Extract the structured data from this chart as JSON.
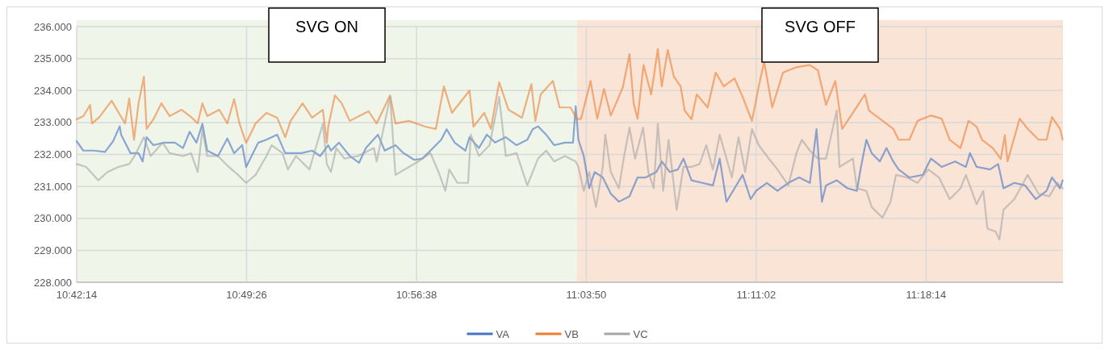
{
  "chart_data": {
    "type": "line",
    "xlim": [
      10.7039,
      11.4006
    ],
    "ylim": [
      228,
      236
    ],
    "xticks": [
      {
        "value": 10.7039,
        "label": "10:42:14"
      },
      {
        "value": 10.8239,
        "label": "10:49:26"
      },
      {
        "value": 10.9439,
        "label": "10:56:38"
      },
      {
        "value": 11.0639,
        "label": "11:03:50"
      },
      {
        "value": 11.1839,
        "label": "11:11:02"
      },
      {
        "value": 11.3039,
        "label": "11:18:14"
      }
    ],
    "yticks": [
      {
        "value": 228,
        "label": "228.000"
      },
      {
        "value": 229,
        "label": "229.000"
      },
      {
        "value": 230,
        "label": "230.000"
      },
      {
        "value": 231,
        "label": "231.000"
      },
      {
        "value": 232,
        "label": "232.000"
      },
      {
        "value": 233,
        "label": "233.000"
      },
      {
        "value": 234,
        "label": "234.000"
      },
      {
        "value": 235,
        "label": "235.000"
      },
      {
        "value": 236,
        "label": "236.000"
      }
    ],
    "grid": true,
    "legend": "bottom",
    "line_style": "solid",
    "bands": [
      {
        "axis": "x",
        "from": 10.7039,
        "to": 11.0574,
        "label": "SVG ON",
        "color": "#eff6e9"
      },
      {
        "axis": "x",
        "from": 11.0574,
        "to": 11.4006,
        "label": "SVG OFF",
        "color": "#fae4d6"
      }
    ],
    "series": [
      {
        "name": "VA",
        "color": "#4472c4",
        "x": [
          10.7039,
          10.7086,
          10.7163,
          10.7239,
          10.7296,
          10.7343,
          10.7353,
          10.7419,
          10.7476,
          10.7505,
          10.7533,
          10.7581,
          10.7656,
          10.7733,
          10.779,
          10.7837,
          10.7885,
          10.7927,
          10.7961,
          10.8037,
          10.8103,
          10.8151,
          10.8208,
          10.8236,
          10.8322,
          10.8379,
          10.8455,
          10.8512,
          10.8626,
          10.8702,
          10.8759,
          10.8816,
          10.8835,
          10.8892,
          10.8968,
          10.9034,
          10.9082,
          10.9167,
          10.9215,
          10.9291,
          10.9348,
          10.9424,
          10.9481,
          10.9538,
          10.9614,
          10.9652,
          10.9709,
          10.9785,
          10.9814,
          10.988,
          10.9937,
          10.9994,
          11.007,
          11.0146,
          11.0222,
          11.026,
          11.0298,
          11.0355,
          11.0412,
          11.0488,
          11.0545,
          11.0564,
          11.0583,
          11.0621,
          11.0659,
          11.0698,
          11.0755,
          11.0812,
          11.0869,
          11.0944,
          11.1001,
          11.1058,
          11.1134,
          11.1172,
          11.1229,
          11.1286,
          11.1325,
          11.1382,
          11.1458,
          11.1533,
          11.1581,
          11.1629,
          11.1686,
          11.1743,
          11.18,
          11.1838,
          11.1914,
          11.1989,
          11.2066,
          11.2142,
          11.2218,
          11.2265,
          11.2303,
          11.2332,
          11.2408,
          11.2484,
          11.255,
          11.2579,
          11.2617,
          11.2655,
          11.2712,
          11.2759,
          11.2807,
          11.2845,
          11.2921,
          11.3016,
          11.3073,
          11.3149,
          11.3244,
          11.332,
          11.3349,
          11.3396,
          11.3491,
          11.3548,
          11.3586,
          11.3662,
          11.3738,
          11.3814,
          11.389,
          11.3928,
          11.3985,
          11.4004
        ],
        "values": [
          232.41,
          232.12,
          232.12,
          232.08,
          232.41,
          232.88,
          232.62,
          232.04,
          232.04,
          231.78,
          232.54,
          232.29,
          232.37,
          232.37,
          232.2,
          232.71,
          232.37,
          232.96,
          232.12,
          231.95,
          232.5,
          232.04,
          232.29,
          231.61,
          232.37,
          232.46,
          232.62,
          232.04,
          232.04,
          232.12,
          231.95,
          232.29,
          232.12,
          232.37,
          231.95,
          231.74,
          232.2,
          232.62,
          232.12,
          232.29,
          232.04,
          231.83,
          231.87,
          232.12,
          232.46,
          232.79,
          232.37,
          232.12,
          232.54,
          232.2,
          232.62,
          232.37,
          232.54,
          232.29,
          232.46,
          232.79,
          232.88,
          232.62,
          232.29,
          232.37,
          232.37,
          233.51,
          232.46,
          231.95,
          230.94,
          231.45,
          231.28,
          230.77,
          230.52,
          230.69,
          231.28,
          231.28,
          231.45,
          231.78,
          231.45,
          231.53,
          231.87,
          231.19,
          231.11,
          231.03,
          231.87,
          230.52,
          230.94,
          231.36,
          230.6,
          230.86,
          231.11,
          230.86,
          231.11,
          231.28,
          231.11,
          232.79,
          230.52,
          231.03,
          231.19,
          230.94,
          230.86,
          231.61,
          232.46,
          232.04,
          231.78,
          232.2,
          231.78,
          231.53,
          231.28,
          231.36,
          231.87,
          231.61,
          231.78,
          231.61,
          232.04,
          231.61,
          231.53,
          231.7,
          230.94,
          231.11,
          231.03,
          230.6,
          230.86,
          231.28,
          230.94,
          231.19
        ]
      },
      {
        "name": "VB",
        "color": "#ed7d31",
        "x": [
          10.7039,
          10.7086,
          10.7134,
          10.7147,
          10.72,
          10.7286,
          10.7343,
          10.7381,
          10.741,
          10.7444,
          10.7476,
          10.7514,
          10.7533,
          10.7581,
          10.7638,
          10.7695,
          10.778,
          10.7847,
          10.7894,
          10.7927,
          10.7961,
          10.8046,
          10.8103,
          10.8151,
          10.8189,
          10.8236,
          10.8303,
          10.8379,
          10.8455,
          10.8512,
          10.855,
          10.8635,
          10.8702,
          10.8778,
          10.8806,
          10.8816,
          10.8863,
          10.8911,
          10.8968,
          10.9101,
          10.9158,
          10.9253,
          10.9291,
          10.9386,
          10.95,
          10.9576,
          10.9633,
          10.969,
          10.9814,
          10.9842,
          10.9918,
          10.9965,
          11.0023,
          11.0089,
          11.0184,
          11.0251,
          11.0279,
          11.0317,
          11.0403,
          11.045,
          11.0527,
          11.0574,
          11.0602,
          11.0669,
          11.0716,
          11.0764,
          11.0812,
          11.0897,
          11.0944,
          11.0973,
          11.1001,
          11.1043,
          11.1097,
          11.1144,
          11.1172,
          11.1214,
          11.1258,
          11.1305,
          11.1334,
          11.1382,
          11.1419,
          11.1496,
          11.1553,
          11.161,
          11.1686,
          11.1743,
          11.1809,
          11.1857,
          11.1895,
          11.1952,
          11.2028,
          11.2123,
          11.2218,
          11.2275,
          11.2332,
          11.2398,
          11.2446,
          11.2522,
          11.2607,
          11.2636,
          11.2712,
          11.2807,
          11.2845,
          11.2921,
          11.2978,
          11.3073,
          11.3149,
          11.3206,
          11.3282,
          11.3339,
          11.3396,
          11.3434,
          11.351,
          11.3567,
          11.3595,
          11.3614,
          11.37,
          11.3757,
          11.3833,
          11.389,
          11.3928,
          11.3985,
          11.4004
        ],
        "values": [
          233.1,
          233.2,
          233.55,
          232.97,
          233.17,
          233.68,
          233.25,
          232.97,
          233.75,
          232.46,
          233.6,
          234.43,
          232.8,
          233.1,
          233.6,
          233.2,
          233.4,
          233.17,
          232.97,
          233.6,
          233.2,
          233.4,
          232.97,
          233.73,
          232.97,
          232.36,
          232.97,
          233.3,
          233.15,
          232.54,
          233.05,
          233.6,
          233.15,
          233.4,
          232.36,
          232.87,
          233.85,
          233.6,
          233.05,
          233.35,
          232.97,
          233.85,
          232.97,
          233.05,
          232.87,
          232.8,
          234.13,
          233.3,
          234.0,
          232.87,
          233.3,
          232.8,
          234.26,
          233.4,
          233.15,
          234.2,
          233.05,
          233.88,
          234.3,
          233.47,
          233.47,
          233.1,
          233.12,
          234.3,
          233.12,
          234.05,
          233.22,
          234.1,
          235.14,
          233.6,
          233.12,
          234.8,
          233.88,
          235.3,
          234.13,
          235.27,
          234.43,
          234.13,
          233.37,
          233.1,
          233.88,
          233.47,
          234.56,
          234.13,
          234.38,
          233.8,
          233.05,
          234.13,
          234.9,
          233.47,
          234.56,
          234.73,
          234.8,
          234.63,
          233.55,
          234.3,
          232.8,
          233.3,
          233.88,
          233.37,
          233.12,
          232.8,
          232.46,
          232.46,
          233.05,
          233.22,
          233.12,
          232.46,
          232.2,
          233.05,
          232.87,
          232.46,
          232.2,
          231.86,
          232.6,
          231.78,
          233.12,
          232.8,
          232.46,
          232.46,
          233.17,
          232.8,
          232.46
        ]
      },
      {
        "name": "VC",
        "color": "#a5a5a5",
        "x": [
          10.7039,
          10.7106,
          10.7191,
          10.7257,
          10.7334,
          10.741,
          10.7448,
          10.7514,
          10.7562,
          10.7647,
          10.7695,
          10.779,
          10.7847,
          10.7894,
          10.7927,
          10.7961,
          10.8037,
          10.8113,
          10.8179,
          10.8236,
          10.8303,
          10.8379,
          10.8417,
          10.8493,
          10.8531,
          10.8588,
          10.8683,
          10.8778,
          10.8806,
          10.8835,
          10.8873,
          10.893,
          10.9025,
          10.9139,
          10.9158,
          10.9253,
          10.9291,
          10.9386,
          10.9452,
          10.9538,
          10.9595,
          10.9643,
          10.9671,
          10.9728,
          10.9804,
          10.9823,
          10.988,
          10.9956,
          11.0023,
          11.007,
          11.0146,
          11.0222,
          11.0298,
          11.0355,
          11.0412,
          11.0488,
          11.0564,
          11.0583,
          11.0621,
          11.0659,
          11.0707,
          11.0755,
          11.0773,
          11.0812,
          11.0869,
          11.0906,
          11.0944,
          11.0983,
          11.104,
          11.1077,
          11.1115,
          11.1144,
          11.1182,
          11.122,
          11.1277,
          11.1325,
          11.1382,
          11.1439,
          11.1486,
          11.1533,
          11.1581,
          11.1629,
          11.1667,
          11.1714,
          11.1761,
          11.1809,
          11.1857,
          11.1914,
          11.1989,
          11.2066,
          11.2123,
          11.2161,
          11.2218,
          11.2275,
          11.2332,
          11.2408,
          11.2427,
          11.2522,
          11.255,
          11.2617,
          11.2655,
          11.2731,
          11.2788,
          11.2826,
          11.2902,
          11.2978,
          11.3054,
          11.313,
          11.3206,
          11.3282,
          11.332,
          11.3396,
          11.3443,
          11.3472,
          11.3529,
          11.3557,
          11.3586,
          11.3662,
          11.3757,
          11.3833,
          11.3909,
          11.3966,
          11.4004
        ],
        "values": [
          231.7,
          231.61,
          231.19,
          231.45,
          231.61,
          231.7,
          231.95,
          232.54,
          231.95,
          232.37,
          232.04,
          231.95,
          232.04,
          231.45,
          232.79,
          231.95,
          231.95,
          231.61,
          231.36,
          231.11,
          231.36,
          231.95,
          232.29,
          232.04,
          231.53,
          231.95,
          231.53,
          232.96,
          231.7,
          231.45,
          232.2,
          231.87,
          231.95,
          232.2,
          231.78,
          233.8,
          231.36,
          231.61,
          231.78,
          232.04,
          231.45,
          230.86,
          231.53,
          231.11,
          231.11,
          232.62,
          231.95,
          232.29,
          233.8,
          231.95,
          232.04,
          231.03,
          231.87,
          232.12,
          231.78,
          231.95,
          231.78,
          231.61,
          230.86,
          231.45,
          230.35,
          231.61,
          232.62,
          231.45,
          230.94,
          231.95,
          232.84,
          231.87,
          232.84,
          231.45,
          230.94,
          232.96,
          230.86,
          232.46,
          230.27,
          231.61,
          231.61,
          231.7,
          232.29,
          231.53,
          232.62,
          231.87,
          231.28,
          232.54,
          231.45,
          232.79,
          232.29,
          231.95,
          231.53,
          231.03,
          232.04,
          232.46,
          232.12,
          231.87,
          231.87,
          233.38,
          231.61,
          231.87,
          230.94,
          230.86,
          230.35,
          230.02,
          230.52,
          231.36,
          231.28,
          231.11,
          231.53,
          231.28,
          230.6,
          230.94,
          231.36,
          230.44,
          230.86,
          229.68,
          229.59,
          229.34,
          230.27,
          230.6,
          231.36,
          230.77,
          230.69,
          231.11,
          230.94
        ]
      }
    ]
  }
}
